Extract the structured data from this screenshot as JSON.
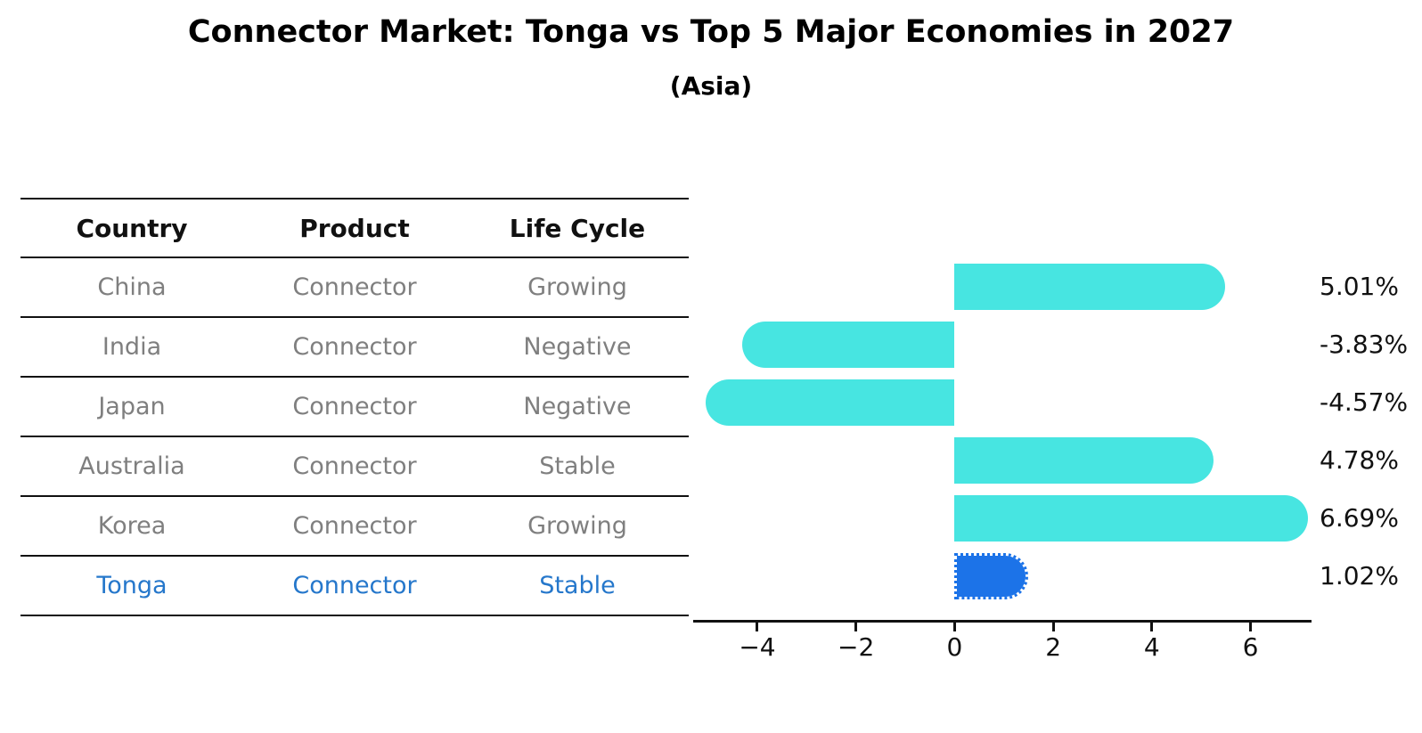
{
  "title": "Connector Market: Tonga vs Top 5 Major Economies in 2027",
  "subtitle": "(Asia)",
  "table": {
    "headers": [
      "Country",
      "Product",
      "Life Cycle"
    ],
    "rows": [
      {
        "country": "China",
        "product": "Connector",
        "life_cycle": "Growing",
        "highlight": false
      },
      {
        "country": "India",
        "product": "Connector",
        "life_cycle": "Negative",
        "highlight": false
      },
      {
        "country": "Japan",
        "product": "Connector",
        "life_cycle": "Negative",
        "highlight": false
      },
      {
        "country": "Australia",
        "product": "Connector",
        "life_cycle": "Stable",
        "highlight": false
      },
      {
        "country": "Korea",
        "product": "Connector",
        "life_cycle": "Growing",
        "highlight": false
      },
      {
        "country": "Tonga",
        "product": "Connector",
        "life_cycle": "Stable",
        "highlight": true
      }
    ]
  },
  "chart_data": {
    "type": "bar",
    "orientation": "horizontal",
    "title": "Connector Market: Tonga vs Top 5 Major Economies in 2027",
    "subtitle": "(Asia)",
    "categories": [
      "China",
      "India",
      "Japan",
      "Australia",
      "Korea",
      "Tonga"
    ],
    "values": [
      5.01,
      -3.83,
      -4.57,
      4.78,
      6.69,
      1.02
    ],
    "value_labels": [
      "5.01%",
      "-3.83%",
      "-4.57%",
      "4.78%",
      "6.69%",
      "1.02%"
    ],
    "unit": "%",
    "xticks": [
      -4,
      -2,
      0,
      2,
      4,
      6
    ],
    "xtick_labels": [
      "−4",
      "−2",
      "0",
      "2",
      "4",
      "6"
    ],
    "xlim": [
      -5.3,
      7.2
    ],
    "grid": false,
    "legend": null,
    "bar_color": "#47E5E1",
    "highlight_bar_color": "#1C73E8",
    "highlight_index": 5,
    "highlight_border_style": "dotted"
  },
  "colors": {
    "row_text": "#7f7f7f",
    "header_text": "#111111",
    "highlight_text": "#2577CB",
    "line": "#111111",
    "background": "#ffffff"
  }
}
